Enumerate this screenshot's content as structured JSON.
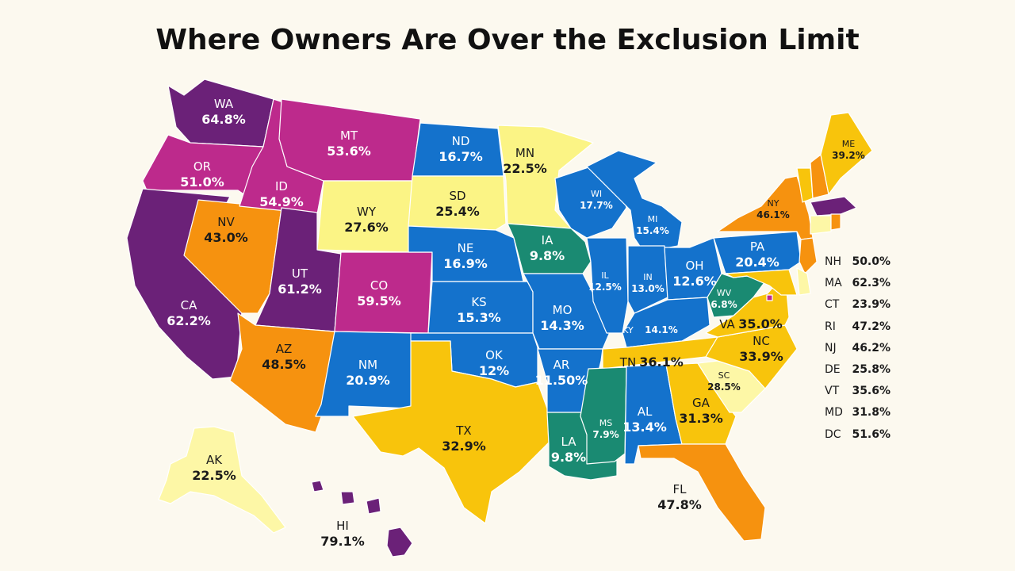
{
  "title": "Where Owners Are Over the Exclusion Limit",
  "colors": {
    "purple": "#6b2178",
    "magenta": "#bd2a8c",
    "orange": "#f6920f",
    "amber": "#f8c40c",
    "light_yellow": "#fbf485",
    "pale_yellow": "#fdf7a6",
    "blue": "#1472cc",
    "teal": "#1a8a72",
    "background": "#fcf9ef"
  },
  "states": [
    {
      "abbr": "WA",
      "value": "64.8%"
    },
    {
      "abbr": "OR",
      "value": "51.0%"
    },
    {
      "abbr": "CA",
      "value": "62.2%"
    },
    {
      "abbr": "NV",
      "value": "43.0%"
    },
    {
      "abbr": "ID",
      "value": "54.9%"
    },
    {
      "abbr": "MT",
      "value": "53.6%"
    },
    {
      "abbr": "WY",
      "value": "27.6%"
    },
    {
      "abbr": "UT",
      "value": "61.2%"
    },
    {
      "abbr": "AZ",
      "value": "48.5%"
    },
    {
      "abbr": "CO",
      "value": "59.5%"
    },
    {
      "abbr": "NM",
      "value": "20.9%"
    },
    {
      "abbr": "ND",
      "value": "16.7%"
    },
    {
      "abbr": "SD",
      "value": "25.4%"
    },
    {
      "abbr": "NE",
      "value": "16.9%"
    },
    {
      "abbr": "KS",
      "value": "15.3%"
    },
    {
      "abbr": "OK",
      "value": "12%"
    },
    {
      "abbr": "TX",
      "value": "32.9%"
    },
    {
      "abbr": "MN",
      "value": "22.5%"
    },
    {
      "abbr": "IA",
      "value": "9.8%"
    },
    {
      "abbr": "MO",
      "value": "14.3%"
    },
    {
      "abbr": "AR",
      "value": "11.50%"
    },
    {
      "abbr": "LA",
      "value": "9.8%"
    },
    {
      "abbr": "WI",
      "value": "17.7%"
    },
    {
      "abbr": "IL",
      "value": "12.5%"
    },
    {
      "abbr": "MI",
      "value": "15.4%"
    },
    {
      "abbr": "IN",
      "value": "13.0%"
    },
    {
      "abbr": "OH",
      "value": "12.6%"
    },
    {
      "abbr": "KY",
      "value": "14.1%"
    },
    {
      "abbr": "TN",
      "value": "36.1%"
    },
    {
      "abbr": "MS",
      "value": "7.9%"
    },
    {
      "abbr": "AL",
      "value": "13.4%"
    },
    {
      "abbr": "GA",
      "value": "31.3%"
    },
    {
      "abbr": "FL",
      "value": "47.8%"
    },
    {
      "abbr": "SC",
      "value": "28.5%"
    },
    {
      "abbr": "NC",
      "value": "33.9%"
    },
    {
      "abbr": "VA",
      "value": "35.0%"
    },
    {
      "abbr": "WV",
      "value": "6.8%"
    },
    {
      "abbr": "PA",
      "value": "20.4%"
    },
    {
      "abbr": "NY",
      "value": "46.1%"
    },
    {
      "abbr": "ME",
      "value": "39.2%"
    },
    {
      "abbr": "AK",
      "value": "22.5%"
    },
    {
      "abbr": "HI",
      "value": "79.1%"
    }
  ],
  "legend": [
    {
      "abbr": "NH",
      "value": "50.0%"
    },
    {
      "abbr": "MA",
      "value": "62.3%"
    },
    {
      "abbr": "CT",
      "value": "23.9%"
    },
    {
      "abbr": "RI",
      "value": "47.2%"
    },
    {
      "abbr": "NJ",
      "value": "46.2%"
    },
    {
      "abbr": "DE",
      "value": "25.8%"
    },
    {
      "abbr": "VT",
      "value": "35.6%"
    },
    {
      "abbr": "MD",
      "value": "31.8%"
    },
    {
      "abbr": "DC",
      "value": "51.6%"
    }
  ]
}
